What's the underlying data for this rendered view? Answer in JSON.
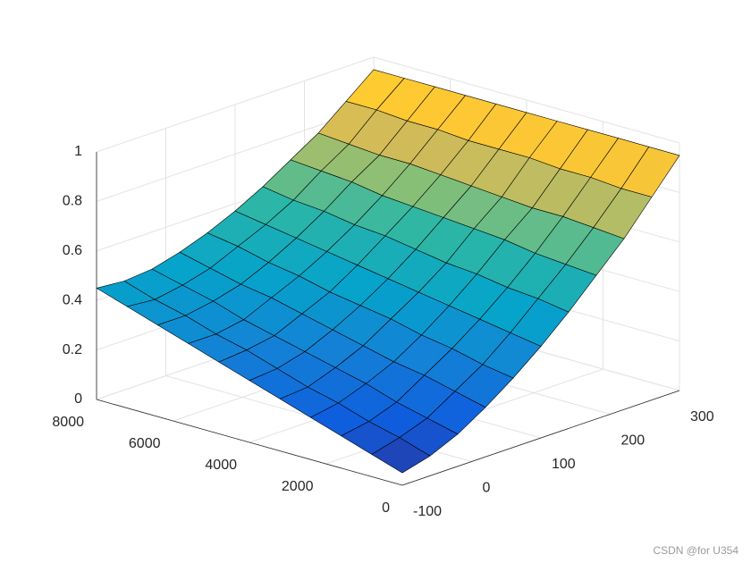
{
  "chart_data": {
    "type": "surface",
    "x": [
      0,
      800,
      1600,
      2400,
      3200,
      4000,
      4800,
      5600,
      6400,
      7200,
      8000
    ],
    "y": [
      -100,
      -60,
      -20,
      20,
      60,
      100,
      140,
      180,
      220,
      260,
      300
    ],
    "z": [
      [
        0.05,
        0.08,
        0.13,
        0.2,
        0.28,
        0.37,
        0.47,
        0.58,
        0.69,
        0.82,
        0.95
      ],
      [
        0.09,
        0.12,
        0.16,
        0.23,
        0.3,
        0.39,
        0.49,
        0.59,
        0.7,
        0.82,
        0.95
      ],
      [
        0.13,
        0.15,
        0.19,
        0.26,
        0.33,
        0.41,
        0.5,
        0.6,
        0.71,
        0.83,
        0.95
      ],
      [
        0.17,
        0.19,
        0.23,
        0.28,
        0.35,
        0.43,
        0.52,
        0.62,
        0.71,
        0.83,
        0.95
      ],
      [
        0.21,
        0.22,
        0.26,
        0.31,
        0.38,
        0.45,
        0.53,
        0.63,
        0.72,
        0.84,
        0.95
      ],
      [
        0.25,
        0.26,
        0.29,
        0.34,
        0.4,
        0.47,
        0.55,
        0.64,
        0.73,
        0.84,
        0.95
      ],
      [
        0.29,
        0.3,
        0.32,
        0.37,
        0.42,
        0.49,
        0.57,
        0.65,
        0.74,
        0.84,
        0.95
      ],
      [
        0.33,
        0.33,
        0.35,
        0.4,
        0.45,
        0.51,
        0.58,
        0.66,
        0.75,
        0.85,
        0.95
      ],
      [
        0.37,
        0.37,
        0.39,
        0.42,
        0.47,
        0.53,
        0.6,
        0.68,
        0.75,
        0.85,
        0.95
      ],
      [
        0.41,
        0.4,
        0.42,
        0.45,
        0.5,
        0.55,
        0.61,
        0.69,
        0.76,
        0.86,
        0.95
      ],
      [
        0.45,
        0.44,
        0.45,
        0.48,
        0.52,
        0.57,
        0.63,
        0.7,
        0.77,
        0.86,
        0.95
      ]
    ],
    "xlim": [
      0,
      8000
    ],
    "ylim": [
      -100,
      300
    ],
    "zlim": [
      0,
      1
    ],
    "xticks": [
      0,
      2000,
      4000,
      6000,
      8000
    ],
    "yticks": [
      -100,
      0,
      100,
      200,
      300
    ],
    "zticks": [
      0,
      0.2,
      0.4,
      0.6,
      0.8,
      1
    ],
    "grid": true,
    "colormap": "parula"
  },
  "watermark": "CSDN @for U354"
}
